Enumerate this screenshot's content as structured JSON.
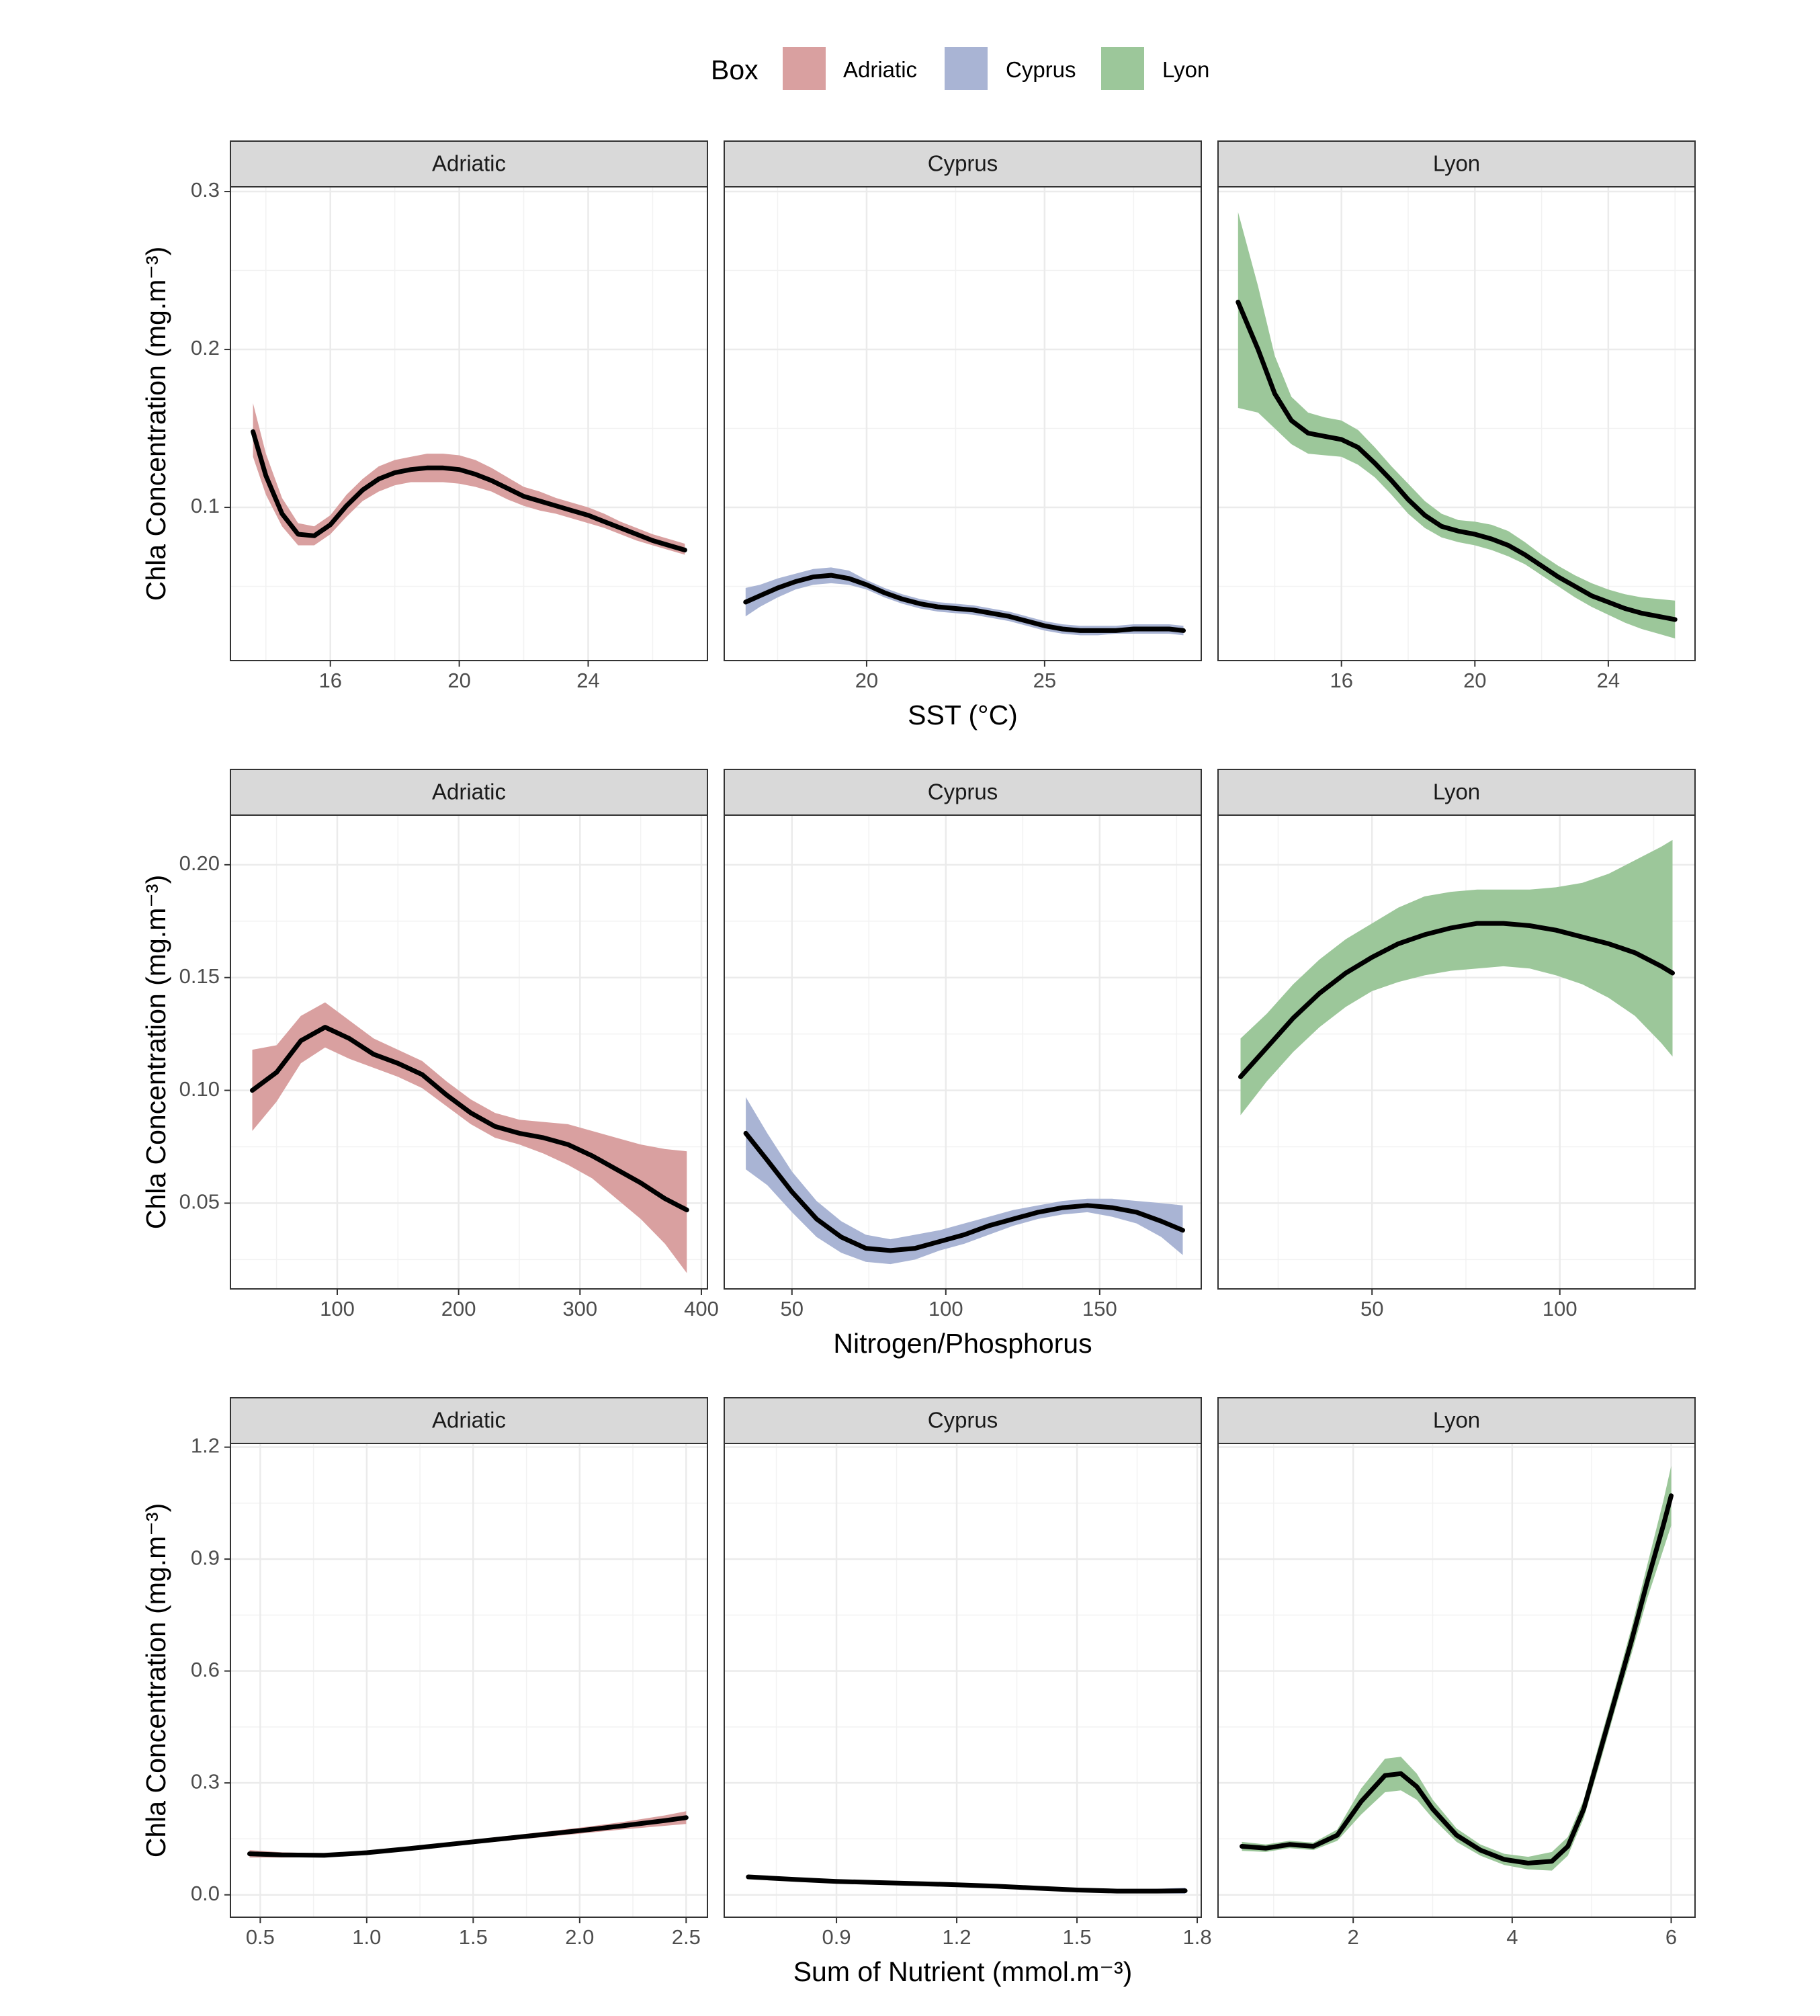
{
  "legend": {
    "title": "Box",
    "items": [
      {
        "label": "Adriatic",
        "color": "#d9a0a0"
      },
      {
        "label": "Cyprus",
        "color": "#a9b4d4"
      },
      {
        "label": "Lyon",
        "color": "#9cc79a"
      }
    ]
  },
  "y_axis_label": "Chla Concentration (mg.m⁻³)",
  "chart_data": [
    {
      "type": "line",
      "row": 1,
      "xlabel": "SST (°C)",
      "ylabel": "Chla Concentration (mg.m⁻³)",
      "ylim": [
        0.003,
        0.303
      ],
      "yticks": [
        0.1,
        0.2,
        0.3
      ],
      "ytick_labels": [
        "0.1",
        "0.2",
        "0.3"
      ],
      "panels": [
        {
          "strip": "Adriatic",
          "color_key": "Adriatic",
          "xlim": [
            12.9,
            27.7
          ],
          "xticks": [
            16,
            20,
            24
          ],
          "xtick_labels": [
            "16",
            "20",
            "24"
          ],
          "x": [
            13.6,
            14.0,
            14.5,
            15.0,
            15.5,
            16.0,
            16.5,
            17.0,
            17.5,
            18.0,
            18.5,
            19.0,
            19.5,
            20.0,
            20.5,
            21.0,
            21.5,
            22.0,
            22.5,
            23.0,
            23.5,
            24.0,
            24.5,
            25.0,
            25.5,
            26.0,
            26.5,
            27.0
          ],
          "y": [
            0.148,
            0.12,
            0.096,
            0.083,
            0.082,
            0.089,
            0.101,
            0.111,
            0.118,
            0.122,
            0.124,
            0.125,
            0.125,
            0.124,
            0.121,
            0.117,
            0.112,
            0.107,
            0.104,
            0.101,
            0.098,
            0.095,
            0.091,
            0.087,
            0.083,
            0.079,
            0.076,
            0.073
          ],
          "ci_lower": [
            0.132,
            0.108,
            0.088,
            0.076,
            0.076,
            0.083,
            0.094,
            0.104,
            0.11,
            0.114,
            0.116,
            0.116,
            0.116,
            0.115,
            0.113,
            0.11,
            0.105,
            0.101,
            0.098,
            0.096,
            0.093,
            0.09,
            0.087,
            0.083,
            0.079,
            0.076,
            0.073,
            0.07
          ],
          "ci_upper": [
            0.166,
            0.134,
            0.106,
            0.09,
            0.088,
            0.095,
            0.108,
            0.118,
            0.126,
            0.13,
            0.132,
            0.134,
            0.134,
            0.133,
            0.13,
            0.125,
            0.119,
            0.113,
            0.11,
            0.106,
            0.103,
            0.1,
            0.096,
            0.091,
            0.087,
            0.083,
            0.08,
            0.077
          ]
        },
        {
          "strip": "Cyprus",
          "color_key": "Cyprus",
          "xlim": [
            16.0,
            29.4
          ],
          "xticks": [
            20,
            25
          ],
          "xtick_labels": [
            "20",
            "25"
          ],
          "x": [
            16.6,
            17.0,
            17.5,
            18.0,
            18.5,
            19.0,
            19.5,
            20.0,
            20.5,
            21.0,
            21.5,
            22.0,
            22.5,
            23.0,
            23.5,
            24.0,
            24.5,
            25.0,
            25.5,
            26.0,
            26.5,
            27.0,
            27.5,
            28.0,
            28.5,
            28.9
          ],
          "y": [
            0.04,
            0.044,
            0.049,
            0.053,
            0.056,
            0.057,
            0.055,
            0.051,
            0.046,
            0.042,
            0.039,
            0.037,
            0.036,
            0.035,
            0.033,
            0.031,
            0.028,
            0.025,
            0.023,
            0.022,
            0.022,
            0.022,
            0.023,
            0.023,
            0.023,
            0.022
          ],
          "ci_lower": [
            0.031,
            0.037,
            0.043,
            0.048,
            0.051,
            0.052,
            0.051,
            0.048,
            0.043,
            0.039,
            0.036,
            0.034,
            0.033,
            0.032,
            0.03,
            0.028,
            0.025,
            0.022,
            0.02,
            0.019,
            0.019,
            0.02,
            0.02,
            0.02,
            0.02,
            0.019
          ],
          "ci_upper": [
            0.049,
            0.051,
            0.055,
            0.058,
            0.061,
            0.062,
            0.06,
            0.054,
            0.049,
            0.045,
            0.042,
            0.04,
            0.039,
            0.038,
            0.036,
            0.034,
            0.031,
            0.028,
            0.026,
            0.025,
            0.025,
            0.025,
            0.026,
            0.026,
            0.026,
            0.025
          ]
        },
        {
          "strip": "Lyon",
          "color_key": "Lyon",
          "xlim": [
            12.3,
            26.6
          ],
          "xticks": [
            16,
            20,
            24
          ],
          "xtick_labels": [
            "16",
            "20",
            "24"
          ],
          "x": [
            12.9,
            13.5,
            14.0,
            14.5,
            15.0,
            15.5,
            16.0,
            16.5,
            17.0,
            17.5,
            18.0,
            18.5,
            19.0,
            19.5,
            20.0,
            20.5,
            21.0,
            21.5,
            22.0,
            22.5,
            23.0,
            23.5,
            24.0,
            24.5,
            25.0,
            25.5,
            26.0
          ],
          "y": [
            0.23,
            0.2,
            0.172,
            0.155,
            0.147,
            0.145,
            0.143,
            0.138,
            0.128,
            0.117,
            0.105,
            0.095,
            0.088,
            0.085,
            0.083,
            0.08,
            0.076,
            0.07,
            0.063,
            0.056,
            0.05,
            0.044,
            0.04,
            0.036,
            0.033,
            0.031,
            0.029
          ],
          "ci_lower": [
            0.163,
            0.16,
            0.15,
            0.14,
            0.134,
            0.133,
            0.132,
            0.127,
            0.119,
            0.108,
            0.096,
            0.087,
            0.081,
            0.078,
            0.076,
            0.073,
            0.069,
            0.064,
            0.057,
            0.05,
            0.043,
            0.037,
            0.032,
            0.027,
            0.023,
            0.02,
            0.017
          ],
          "ci_upper": [
            0.287,
            0.24,
            0.196,
            0.17,
            0.16,
            0.157,
            0.155,
            0.149,
            0.138,
            0.126,
            0.115,
            0.104,
            0.096,
            0.092,
            0.091,
            0.089,
            0.085,
            0.078,
            0.07,
            0.063,
            0.057,
            0.052,
            0.048,
            0.045,
            0.043,
            0.042,
            0.041
          ]
        }
      ]
    },
    {
      "type": "line",
      "row": 2,
      "xlabel": "Nitrogen/Phosphorus",
      "ylabel": "Chla Concentration (mg.m⁻³)",
      "ylim": [
        0.012,
        0.222
      ],
      "yticks": [
        0.05,
        0.1,
        0.15,
        0.2
      ],
      "ytick_labels": [
        "0.05",
        "0.10",
        "0.15",
        "0.20"
      ],
      "panels": [
        {
          "strip": "Adriatic",
          "color_key": "Adriatic",
          "xlim": [
            12,
            405
          ],
          "xticks": [
            100,
            200,
            300,
            400
          ],
          "xtick_labels": [
            "100",
            "200",
            "300",
            "400"
          ],
          "x": [
            30,
            50,
            70,
            90,
            110,
            130,
            150,
            170,
            190,
            210,
            230,
            250,
            270,
            290,
            310,
            330,
            350,
            370,
            388
          ],
          "y": [
            0.1,
            0.108,
            0.122,
            0.128,
            0.123,
            0.116,
            0.112,
            0.107,
            0.098,
            0.09,
            0.084,
            0.081,
            0.079,
            0.076,
            0.071,
            0.065,
            0.059,
            0.052,
            0.047
          ],
          "ci_lower": [
            0.082,
            0.095,
            0.112,
            0.119,
            0.114,
            0.11,
            0.106,
            0.101,
            0.093,
            0.085,
            0.079,
            0.076,
            0.072,
            0.067,
            0.061,
            0.052,
            0.043,
            0.032,
            0.019
          ],
          "ci_upper": [
            0.118,
            0.12,
            0.133,
            0.139,
            0.131,
            0.123,
            0.118,
            0.113,
            0.104,
            0.096,
            0.09,
            0.087,
            0.086,
            0.085,
            0.082,
            0.079,
            0.076,
            0.074,
            0.073
          ]
        },
        {
          "strip": "Cyprus",
          "color_key": "Cyprus",
          "xlim": [
            28,
            183
          ],
          "xticks": [
            50,
            100,
            150
          ],
          "xtick_labels": [
            "50",
            "100",
            "150"
          ],
          "x": [
            35,
            42,
            50,
            58,
            66,
            74,
            82,
            90,
            98,
            106,
            114,
            122,
            130,
            138,
            146,
            154,
            162,
            170,
            177
          ],
          "y": [
            0.081,
            0.069,
            0.055,
            0.043,
            0.035,
            0.03,
            0.029,
            0.03,
            0.033,
            0.036,
            0.04,
            0.043,
            0.046,
            0.048,
            0.049,
            0.048,
            0.046,
            0.042,
            0.038
          ],
          "ci_lower": [
            0.065,
            0.058,
            0.046,
            0.035,
            0.028,
            0.024,
            0.023,
            0.025,
            0.029,
            0.032,
            0.036,
            0.04,
            0.043,
            0.045,
            0.046,
            0.044,
            0.041,
            0.035,
            0.027
          ],
          "ci_upper": [
            0.097,
            0.081,
            0.064,
            0.051,
            0.042,
            0.036,
            0.034,
            0.036,
            0.038,
            0.041,
            0.044,
            0.047,
            0.049,
            0.051,
            0.052,
            0.052,
            0.051,
            0.05,
            0.049
          ]
        },
        {
          "strip": "Lyon",
          "color_key": "Lyon",
          "xlim": [
            9,
            136
          ],
          "xticks": [
            50,
            100
          ],
          "xtick_labels": [
            "50",
            "100"
          ],
          "x": [
            15,
            22,
            29,
            36,
            43,
            50,
            57,
            64,
            71,
            78,
            85,
            92,
            99,
            106,
            113,
            120,
            127,
            130
          ],
          "y": [
            0.106,
            0.119,
            0.132,
            0.143,
            0.152,
            0.159,
            0.165,
            0.169,
            0.172,
            0.174,
            0.174,
            0.173,
            0.171,
            0.168,
            0.165,
            0.161,
            0.155,
            0.152
          ],
          "ci_lower": [
            0.089,
            0.104,
            0.117,
            0.128,
            0.137,
            0.144,
            0.148,
            0.151,
            0.153,
            0.154,
            0.155,
            0.154,
            0.151,
            0.147,
            0.141,
            0.133,
            0.121,
            0.115
          ],
          "ci_upper": [
            0.123,
            0.134,
            0.147,
            0.158,
            0.167,
            0.174,
            0.181,
            0.186,
            0.188,
            0.189,
            0.189,
            0.189,
            0.19,
            0.192,
            0.196,
            0.202,
            0.208,
            0.211
          ]
        }
      ]
    },
    {
      "type": "line",
      "row": 3,
      "xlabel": "Sum of Nutrient (mmol.m⁻³)",
      "ylabel": "Chla Concentration (mg.m⁻³)",
      "ylim": [
        -0.06,
        1.21
      ],
      "yticks": [
        0.0,
        0.3,
        0.6,
        0.9,
        1.2
      ],
      "ytick_labels": [
        "0.0",
        "0.3",
        "0.6",
        "0.9",
        "1.2"
      ],
      "panels": [
        {
          "strip": "Adriatic",
          "color_key": "Adriatic",
          "xlim": [
            0.36,
            2.6
          ],
          "xticks": [
            0.5,
            1.0,
            1.5,
            2.0,
            2.5
          ],
          "xtick_labels": [
            "0.5",
            "1.0",
            "1.5",
            "2.0",
            "2.5"
          ],
          "x": [
            0.45,
            0.6,
            0.8,
            1.0,
            1.2,
            1.4,
            1.6,
            1.8,
            2.0,
            2.2,
            2.4,
            2.5
          ],
          "y": [
            0.11,
            0.107,
            0.106,
            0.113,
            0.124,
            0.136,
            0.148,
            0.16,
            0.172,
            0.185,
            0.199,
            0.207
          ],
          "ci_lower": [
            0.1,
            0.1,
            0.101,
            0.108,
            0.119,
            0.131,
            0.142,
            0.153,
            0.164,
            0.175,
            0.185,
            0.19
          ],
          "ci_upper": [
            0.12,
            0.114,
            0.111,
            0.118,
            0.129,
            0.141,
            0.154,
            0.167,
            0.18,
            0.195,
            0.213,
            0.224
          ]
        },
        {
          "strip": "Cyprus",
          "color_key": "Cyprus",
          "xlim": [
            0.62,
            1.81
          ],
          "xticks": [
            0.9,
            1.2,
            1.5,
            1.8
          ],
          "xtick_labels": [
            "0.9",
            "1.2",
            "1.5",
            "1.8"
          ],
          "x": [
            0.68,
            0.8,
            0.9,
            1.0,
            1.1,
            1.2,
            1.3,
            1.4,
            1.5,
            1.6,
            1.7,
            1.77
          ],
          "y": [
            0.048,
            0.041,
            0.036,
            0.033,
            0.03,
            0.027,
            0.023,
            0.018,
            0.013,
            0.01,
            0.01,
            0.011
          ],
          "ci_lower": [
            0.043,
            0.037,
            0.033,
            0.03,
            0.027,
            0.024,
            0.02,
            0.015,
            0.01,
            0.006,
            0.004,
            0.003
          ],
          "ci_upper": [
            0.053,
            0.045,
            0.039,
            0.036,
            0.033,
            0.03,
            0.026,
            0.021,
            0.016,
            0.014,
            0.016,
            0.019
          ]
        },
        {
          "strip": "Lyon",
          "color_key": "Lyon",
          "xlim": [
            0.3,
            6.3
          ],
          "xticks": [
            2,
            4,
            6
          ],
          "xtick_labels": [
            "2",
            "4",
            "6"
          ],
          "x": [
            0.6,
            0.9,
            1.2,
            1.5,
            1.8,
            2.1,
            2.4,
            2.6,
            2.8,
            3.0,
            3.3,
            3.6,
            3.9,
            4.2,
            4.5,
            4.7,
            4.9,
            5.1,
            5.3,
            5.5,
            5.7,
            5.9,
            6.0
          ],
          "y": [
            0.13,
            0.125,
            0.135,
            0.13,
            0.16,
            0.25,
            0.32,
            0.325,
            0.29,
            0.23,
            0.16,
            0.12,
            0.095,
            0.085,
            0.09,
            0.13,
            0.23,
            0.38,
            0.53,
            0.68,
            0.84,
            0.99,
            1.07
          ],
          "ci_lower": [
            0.118,
            0.115,
            0.125,
            0.12,
            0.145,
            0.215,
            0.275,
            0.28,
            0.255,
            0.205,
            0.142,
            0.105,
            0.08,
            0.068,
            0.065,
            0.105,
            0.205,
            0.35,
            0.5,
            0.645,
            0.795,
            0.925,
            0.99
          ],
          "ci_upper": [
            0.142,
            0.135,
            0.145,
            0.14,
            0.175,
            0.285,
            0.365,
            0.37,
            0.325,
            0.255,
            0.178,
            0.135,
            0.11,
            0.102,
            0.115,
            0.155,
            0.255,
            0.41,
            0.56,
            0.715,
            0.885,
            1.055,
            1.15
          ]
        }
      ]
    }
  ]
}
